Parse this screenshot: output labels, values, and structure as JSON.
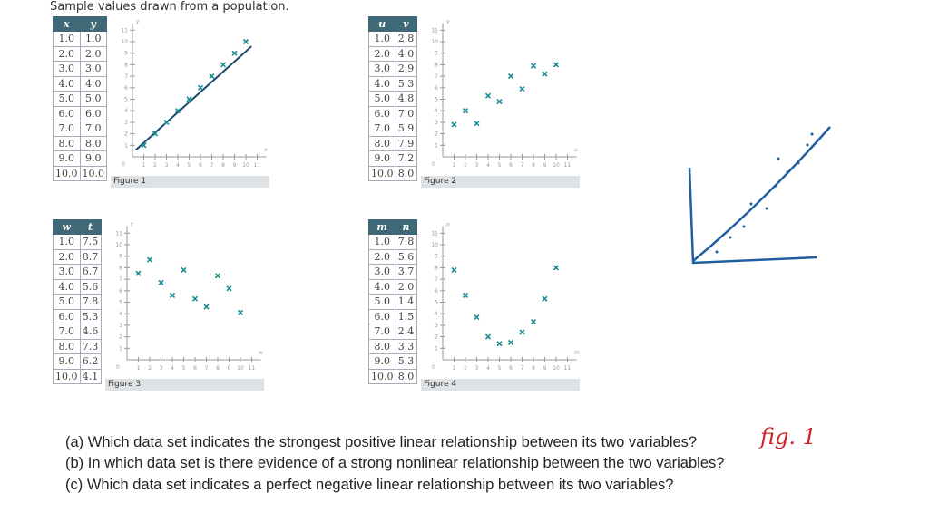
{
  "header_text": "Sample values drawn from a population.",
  "questions": [
    "(a) Which data set indicates the strongest positive linear relationship between its two variables?",
    "(b) In which data set is there evidence of a strong nonlinear relationship between the two variables?",
    "(c) Which data set indicates a perfect negative linear relationship between its two variables?"
  ],
  "handwritten_answer": "fig. 1",
  "colors": {
    "header": "#3f6977",
    "marker": "#1a8c94",
    "line": "#1a4a6e",
    "ink": "#d0202a",
    "sketch": "#1f5f9f"
  },
  "chart_data": [
    {
      "type": "scatter",
      "caption": "Figure 1",
      "xlabel": "x",
      "ylabel": "y",
      "xlim": [
        0,
        11
      ],
      "ylim": [
        0,
        11
      ],
      "x": [
        1,
        2,
        3,
        4,
        5,
        6,
        7,
        8,
        9,
        10
      ],
      "y": [
        1,
        2,
        3,
        4,
        5,
        6,
        7,
        8,
        9,
        10
      ],
      "x_text": [
        "1.0",
        "2.0",
        "3.0",
        "4.0",
        "5.0",
        "6.0",
        "7.0",
        "8.0",
        "9.0",
        "10.0"
      ],
      "y_text": [
        "1.0",
        "2.0",
        "3.0",
        "4.0",
        "5.0",
        "6.0",
        "7.0",
        "8.0",
        "9.0",
        "10.0"
      ],
      "trend_line": true
    },
    {
      "type": "scatter",
      "caption": "Figure 2",
      "xlabel": "u",
      "ylabel": "v",
      "xlim": [
        0,
        11
      ],
      "ylim": [
        0,
        11
      ],
      "x": [
        1,
        2,
        3,
        4,
        5,
        6,
        7,
        8,
        9,
        10
      ],
      "y": [
        2.8,
        4.0,
        2.9,
        5.3,
        4.8,
        7.0,
        5.9,
        7.9,
        7.2,
        8.0
      ],
      "x_text": [
        "1.0",
        "2.0",
        "3.0",
        "4.0",
        "5.0",
        "6.0",
        "7.0",
        "8.0",
        "9.0",
        "10.0"
      ],
      "y_text": [
        "2.8",
        "4.0",
        "2.9",
        "5.3",
        "4.8",
        "7.0",
        "5.9",
        "7.9",
        "7.2",
        "8.0"
      ]
    },
    {
      "type": "scatter",
      "caption": "Figure 3",
      "xlabel": "w",
      "ylabel": "t",
      "xlim": [
        0,
        11
      ],
      "ylim": [
        0,
        11
      ],
      "x": [
        1,
        2,
        3,
        4,
        5,
        6,
        7,
        8,
        9,
        10
      ],
      "y": [
        7.5,
        8.7,
        6.7,
        5.6,
        7.8,
        5.3,
        4.6,
        7.3,
        6.2,
        4.1
      ],
      "x_text": [
        "1.0",
        "2.0",
        "3.0",
        "4.0",
        "5.0",
        "6.0",
        "7.0",
        "8.0",
        "9.0",
        "10.0"
      ],
      "y_text": [
        "7.5",
        "8.7",
        "6.7",
        "5.6",
        "7.8",
        "5.3",
        "4.6",
        "7.3",
        "6.2",
        "4.1"
      ]
    },
    {
      "type": "scatter",
      "caption": "Figure 4",
      "xlabel": "m",
      "ylabel": "n",
      "xlim": [
        0,
        11
      ],
      "ylim": [
        0,
        11
      ],
      "x": [
        1,
        2,
        3,
        4,
        5,
        6,
        7,
        8,
        9,
        10
      ],
      "y": [
        7.8,
        5.6,
        3.7,
        2.0,
        1.4,
        1.5,
        2.4,
        3.3,
        5.3,
        8.0
      ],
      "x_text": [
        "1.0",
        "2.0",
        "3.0",
        "4.0",
        "5.0",
        "6.0",
        "7.0",
        "8.0",
        "9.0",
        "10.0"
      ],
      "y_text": [
        "7.8",
        "5.6",
        "3.7",
        "2.0",
        "1.4",
        "1.5",
        "2.4",
        "3.3",
        "5.3",
        "8.0"
      ]
    }
  ]
}
